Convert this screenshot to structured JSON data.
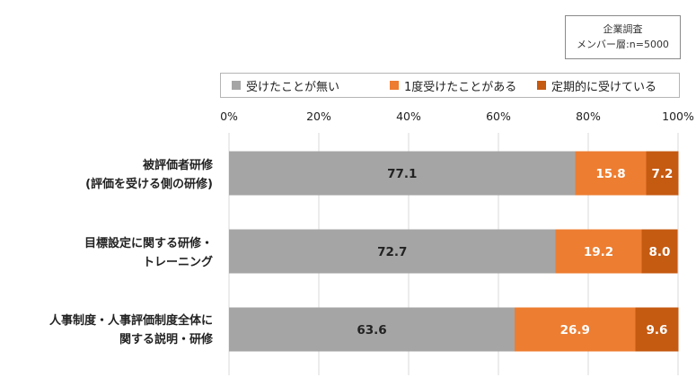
{
  "note": {
    "line1": "企業調査",
    "line2": "メンバー層:n=5000"
  },
  "colors": {
    "never": "#a5a5a5",
    "once": "#ed7d31",
    "regular": "#c55a11",
    "grid": "#d9d9d9"
  },
  "chart_data": {
    "type": "bar",
    "orientation": "horizontal",
    "stacked": true,
    "xlim": [
      0,
      100
    ],
    "xticks": [
      "0%",
      "20%",
      "40%",
      "60%",
      "80%",
      "100%"
    ],
    "legend_position": "top",
    "grid": true,
    "categories": [
      [
        "被評価者研修",
        "(評価を受ける側の研修)"
      ],
      [
        "目標設定に関する研修・",
        "トレーニング"
      ],
      [
        "人事制度・人事評価制度全体に",
        "関する説明・研修"
      ]
    ],
    "series": [
      {
        "name": "受けたことが無い",
        "values": [
          77.1,
          72.7,
          63.6
        ],
        "labels": [
          "77.1",
          "72.7",
          "63.6"
        ]
      },
      {
        "name": "1度受けたことがある",
        "values": [
          15.8,
          19.2,
          26.9
        ],
        "labels": [
          "15.8",
          "19.2",
          "26.9"
        ]
      },
      {
        "name": "定期的に受けている",
        "values": [
          7.2,
          8.0,
          9.6
        ],
        "labels": [
          "7.2",
          "8.0",
          "9.6"
        ]
      }
    ]
  }
}
